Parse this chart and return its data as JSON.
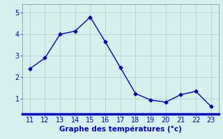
{
  "x": [
    11,
    12,
    13,
    14,
    15,
    16,
    17,
    18,
    19,
    20,
    21,
    22,
    23
  ],
  "y": [
    2.4,
    2.9,
    4.0,
    4.15,
    4.8,
    3.65,
    2.45,
    1.25,
    0.95,
    0.85,
    1.2,
    1.35,
    0.65
  ],
  "line_color": "#0000cc",
  "marker": "D",
  "marker_size": 2.5,
  "bg_color": "#d6f0ee",
  "grid_color": "#aacccc",
  "xlabel": "Graphe des températures (°c)",
  "xlabel_color": "#0000cc",
  "xlabel_fontsize": 7.5,
  "tick_color": "#0000cc",
  "tick_fontsize": 7,
  "ytick_values": [
    1,
    2,
    3,
    4,
    5
  ],
  "xtick_values": [
    11,
    12,
    13,
    14,
    15,
    16,
    17,
    18,
    19,
    20,
    21,
    22,
    23
  ],
  "ylim": [
    0.3,
    5.4
  ],
  "xlim": [
    10.5,
    23.5
  ],
  "bottom_bar_color": "#0000cc",
  "bottom_bar_height": 0.03
}
